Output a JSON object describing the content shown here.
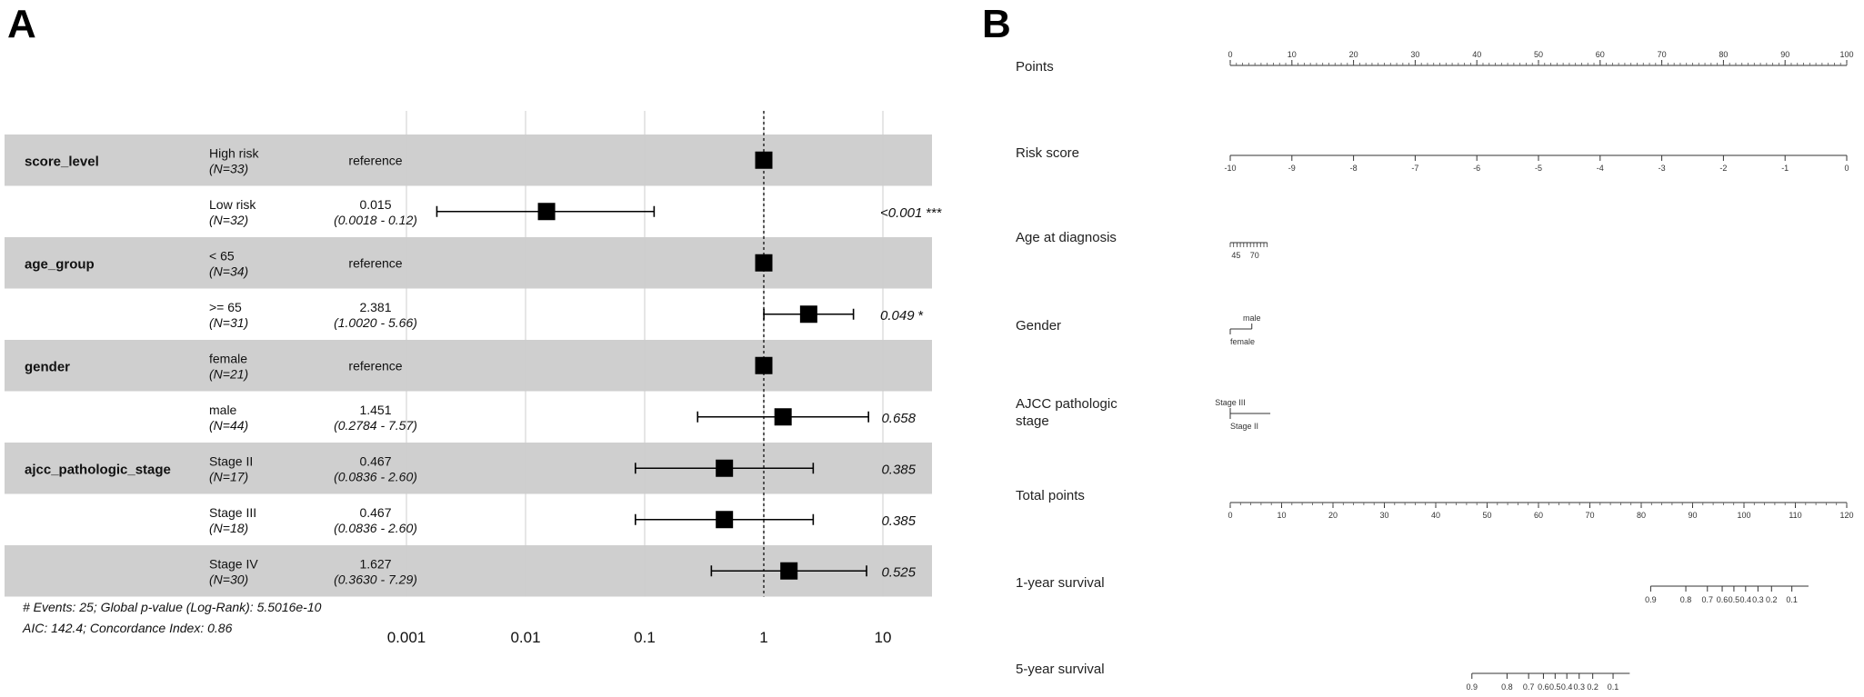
{
  "panels": {
    "a_label": "A",
    "b_label": "B"
  },
  "chart_data": [
    {
      "type": "forest",
      "scale": "log",
      "xlim": [
        0.001,
        10
      ],
      "x_ticks": [
        0.001,
        0.01,
        0.1,
        1,
        10
      ],
      "x_tick_labels": [
        "0.001",
        "0.01",
        "0.1",
        "1",
        "10"
      ],
      "reference_line": 1,
      "grid": true,
      "rows": [
        {
          "variable": "score_level",
          "level": "High risk",
          "n": "(N=33)",
          "estimate_text": "reference",
          "ci_text": "",
          "hr": 1,
          "lo": null,
          "hi": null,
          "p": "",
          "stars": "",
          "shaded": true
        },
        {
          "variable": "",
          "level": "Low risk",
          "n": "(N=32)",
          "estimate_text": "0.015",
          "ci_text": "(0.0018 - 0.12)",
          "hr": 0.015,
          "lo": 0.0018,
          "hi": 0.12,
          "p": "<0.001",
          "stars": "***",
          "shaded": false
        },
        {
          "variable": "age_group",
          "level": "< 65",
          "n": "(N=34)",
          "estimate_text": "reference",
          "ci_text": "",
          "hr": 1,
          "lo": null,
          "hi": null,
          "p": "",
          "stars": "",
          "shaded": true
        },
        {
          "variable": "",
          "level": ">= 65",
          "n": "(N=31)",
          "estimate_text": "2.381",
          "ci_text": "(1.0020 - 5.66)",
          "hr": 2.381,
          "lo": 1.002,
          "hi": 5.66,
          "p": "0.049",
          "stars": "*",
          "shaded": false
        },
        {
          "variable": "gender",
          "level": "female",
          "n": "(N=21)",
          "estimate_text": "reference",
          "ci_text": "",
          "hr": 1,
          "lo": null,
          "hi": null,
          "p": "",
          "stars": "",
          "shaded": true
        },
        {
          "variable": "",
          "level": "male",
          "n": "(N=44)",
          "estimate_text": "1.451",
          "ci_text": "(0.2784 - 7.57)",
          "hr": 1.451,
          "lo": 0.2784,
          "hi": 7.57,
          "p": "0.658",
          "stars": "",
          "shaded": false
        },
        {
          "variable": "ajcc_pathologic_stage",
          "level": "Stage II",
          "n": "(N=17)",
          "estimate_text": "0.467",
          "ci_text": "(0.0836 - 2.60)",
          "hr": 0.467,
          "lo": 0.0836,
          "hi": 2.6,
          "p": "0.385",
          "stars": "",
          "shaded": true
        },
        {
          "variable": "",
          "level": "Stage III",
          "n": "(N=18)",
          "estimate_text": "0.467",
          "ci_text": "(0.0836 - 2.60)",
          "hr": 0.467,
          "lo": 0.0836,
          "hi": 2.6,
          "p": "0.385",
          "stars": "",
          "shaded": false
        },
        {
          "variable": "",
          "level": "Stage IV",
          "n": "(N=30)",
          "estimate_text": "1.627",
          "ci_text": "(0.3630 - 7.29)",
          "hr": 1.627,
          "lo": 0.363,
          "hi": 7.29,
          "p": "0.525",
          "stars": "",
          "shaded": true
        }
      ],
      "footer": [
        "# Events: 25; Global p-value (Log-Rank): 5.5016e-10",
        "AIC: 142.4; Concordance Index: 0.86"
      ]
    },
    {
      "type": "nomogram",
      "scales": [
        {
          "label": [
            "Points"
          ],
          "kind": "linear",
          "min": 0,
          "max": 100,
          "start": 0,
          "end": 100,
          "ticks": [
            0,
            10,
            20,
            30,
            40,
            50,
            60,
            70,
            80,
            90,
            100
          ],
          "minor": 1,
          "labels_above": true
        },
        {
          "label": [
            "Risk score"
          ],
          "kind": "linear",
          "min": -10,
          "max": 0,
          "start": 0,
          "end": 100,
          "ticks": [
            -10,
            -9,
            -8,
            -7,
            -6,
            -5,
            -4,
            -3,
            -2,
            -1,
            0
          ],
          "minor": 0,
          "labels_above": false
        },
        {
          "label": [
            "Age at diagnosis"
          ],
          "kind": "age",
          "start": 0,
          "end": 6,
          "tick_labels": [
            "45",
            "70"
          ],
          "label_positions": [
            0.2,
            3.2
          ],
          "minor_count": 12
        },
        {
          "label": [
            "Gender"
          ],
          "kind": "categorical",
          "start": 0,
          "end": 3.5,
          "categories": [
            {
              "name": "male",
              "pos": 3.5,
              "above": true
            },
            {
              "name": "female",
              "pos": 0,
              "above": false
            }
          ]
        },
        {
          "label": [
            "AJCC pathologic",
            "stage"
          ],
          "kind": "categorical",
          "start": 0,
          "end": 6.5,
          "categories": [
            {
              "name": "Stage III",
              "pos": 0,
              "above": true
            },
            {
              "name": "Stage II",
              "pos": 0,
              "above": false
            }
          ]
        },
        {
          "label": [
            "Total points"
          ],
          "kind": "linear",
          "min": 0,
          "max": 120,
          "start": 0,
          "end": 100,
          "ticks": [
            0,
            10,
            20,
            30,
            40,
            50,
            60,
            70,
            80,
            90,
            100,
            110,
            120
          ],
          "minor": 2,
          "labels_above": false
        },
        {
          "label": [
            "1-year survival"
          ],
          "kind": "survival",
          "start": 68.2,
          "end": 93.8,
          "ticks": [
            {
              "v": "0.9",
              "pos": 68.2
            },
            {
              "v": "0.8",
              "pos": 73.9
            },
            {
              "v": "0.7",
              "pos": 77.4
            },
            {
              "v": "0.6",
              "pos": 79.8
            },
            {
              "v": "0.5",
              "pos": 81.7
            },
            {
              "v": "0.4",
              "pos": 83.6
            },
            {
              "v": "0.3",
              "pos": 85.6
            },
            {
              "v": "0.2",
              "pos": 87.8
            },
            {
              "v": "0.1",
              "pos": 91.1
            }
          ]
        },
        {
          "label": [
            "5-year survival"
          ],
          "kind": "survival",
          "start": 39.2,
          "end": 64.8,
          "ticks": [
            {
              "v": "0.9",
              "pos": 39.2
            },
            {
              "v": "0.8",
              "pos": 44.9
            },
            {
              "v": "0.7",
              "pos": 48.4
            },
            {
              "v": "0.6",
              "pos": 50.8
            },
            {
              "v": "0.5",
              "pos": 52.7
            },
            {
              "v": "0.4",
              "pos": 54.6
            },
            {
              "v": "0.3",
              "pos": 56.6
            },
            {
              "v": "0.2",
              "pos": 58.8
            },
            {
              "v": "0.1",
              "pos": 62.1
            }
          ]
        }
      ]
    }
  ]
}
